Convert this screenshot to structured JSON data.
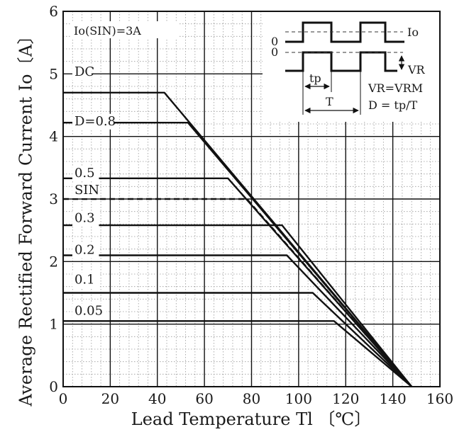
{
  "chart_data": {
    "type": "line",
    "xlabel": "Lead Temperature  Tl 〔℃〕",
    "ylabel": "Average Rectified Forward Current  Io〔A〕",
    "xlim": [
      0,
      160
    ],
    "ylim": [
      0,
      6
    ],
    "xticks": [
      0,
      20,
      40,
      60,
      80,
      100,
      120,
      140,
      160
    ],
    "yticks": [
      0,
      1,
      2,
      3,
      4,
      5,
      6
    ],
    "grid": true,
    "condition_label": "Io(SIN)=3A",
    "series": [
      {
        "name": "DC",
        "label_at": [
          3,
          4.97
        ],
        "x": [
          0,
          43,
          148
        ],
        "y": [
          4.7,
          4.7,
          0
        ],
        "dash": false
      },
      {
        "name": "D=0.8",
        "label_at": [
          3,
          4.18
        ],
        "x": [
          0,
          53,
          148
        ],
        "y": [
          4.22,
          4.22,
          0
        ],
        "dash": false
      },
      {
        "name": "0.5",
        "label_at": [
          3,
          3.35
        ],
        "x": [
          0,
          70,
          148
        ],
        "y": [
          3.33,
          3.33,
          0
        ],
        "dash": false
      },
      {
        "name": "SIN",
        "label_at": [
          3,
          3.08
        ],
        "x": [
          0,
          78,
          148
        ],
        "y": [
          3.0,
          3.0,
          0
        ],
        "dash": true
      },
      {
        "name": "0.3",
        "label_at": [
          3,
          2.63
        ],
        "x": [
          0,
          93,
          148
        ],
        "y": [
          2.58,
          2.58,
          0
        ],
        "dash": false
      },
      {
        "name": "0.2",
        "label_at": [
          3,
          2.12
        ],
        "x": [
          0,
          95,
          148
        ],
        "y": [
          2.1,
          2.1,
          0
        ],
        "dash": false
      },
      {
        "name": "0.1",
        "label_at": [
          3,
          1.65
        ],
        "x": [
          0,
          106,
          148
        ],
        "y": [
          1.5,
          1.5,
          0
        ],
        "dash": false
      },
      {
        "name": "0.05",
        "label_at": [
          3,
          1.15
        ],
        "x": [
          0,
          115,
          148
        ],
        "y": [
          1.05,
          1.05,
          0
        ],
        "dash": false
      }
    ],
    "inset": {
      "io_label": "Io",
      "vr_label": "VR",
      "zero_label": "0",
      "tp_label": "tp",
      "t_label": "T",
      "note1": "VR=VRM",
      "note2": "D = tp/T"
    }
  }
}
